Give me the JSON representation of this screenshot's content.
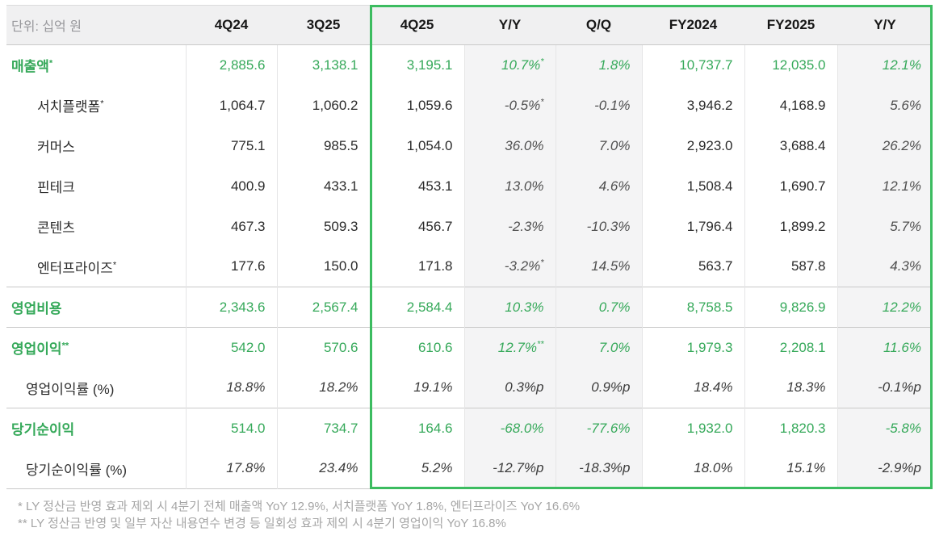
{
  "chart_data": {
    "type": "table",
    "unit_label": "단위: 십억 원",
    "columns": [
      {
        "label": "4Q24",
        "boxed": false,
        "shaded": false,
        "italic": false
      },
      {
        "label": "3Q25",
        "boxed": false,
        "shaded": false,
        "italic": false
      },
      {
        "label": "4Q25",
        "boxed": true,
        "shaded": false,
        "italic": false
      },
      {
        "label": "Y/Y",
        "boxed": true,
        "shaded": true,
        "italic": true
      },
      {
        "label": "Q/Q",
        "boxed": true,
        "shaded": true,
        "italic": true
      },
      {
        "label": "FY2024",
        "boxed": true,
        "shaded": false,
        "italic": false
      },
      {
        "label": "FY2025",
        "boxed": true,
        "shaded": false,
        "italic": false
      },
      {
        "label": "Y/Y",
        "boxed": true,
        "shaded": true,
        "italic": true
      }
    ],
    "rows": [
      {
        "label": "매출액*",
        "type": "total",
        "divider_above": false,
        "values": [
          "2,885.6",
          "3,138.1",
          "3,195.1",
          "10.7%*",
          "1.8%",
          "10,737.7",
          "12,035.0",
          "12.1%"
        ]
      },
      {
        "label": "서치플랫폼*",
        "type": "segment",
        "divider_above": false,
        "values": [
          "1,064.7",
          "1,060.2",
          "1,059.6",
          "-0.5%*",
          "-0.1%",
          "3,946.2",
          "4,168.9",
          "5.6%"
        ]
      },
      {
        "label": "커머스",
        "type": "segment",
        "divider_above": false,
        "values": [
          "775.1",
          "985.5",
          "1,054.0",
          "36.0%",
          "7.0%",
          "2,923.0",
          "3,688.4",
          "26.2%"
        ]
      },
      {
        "label": "핀테크",
        "type": "segment",
        "divider_above": false,
        "values": [
          "400.9",
          "433.1",
          "453.1",
          "13.0%",
          "4.6%",
          "1,508.4",
          "1,690.7",
          "12.1%"
        ]
      },
      {
        "label": "콘텐츠",
        "type": "segment",
        "divider_above": false,
        "values": [
          "467.3",
          "509.3",
          "456.7",
          "-2.3%",
          "-10.3%",
          "1,796.4",
          "1,899.2",
          "5.7%"
        ]
      },
      {
        "label": "엔터프라이즈*",
        "type": "segment",
        "divider_above": false,
        "values": [
          "177.6",
          "150.0",
          "171.8",
          "-3.2%*",
          "14.5%",
          "563.7",
          "587.8",
          "4.3%"
        ]
      },
      {
        "label": "영업비용",
        "type": "total",
        "divider_above": true,
        "values": [
          "2,343.6",
          "2,567.4",
          "2,584.4",
          "10.3%",
          "0.7%",
          "8,758.5",
          "9,826.9",
          "12.2%"
        ]
      },
      {
        "label": "영업이익**",
        "type": "total",
        "divider_above": true,
        "values": [
          "542.0",
          "570.6",
          "610.6",
          "12.7%**",
          "7.0%",
          "1,979.3",
          "2,208.1",
          "11.6%"
        ]
      },
      {
        "label": "영업이익률 (%)",
        "type": "ratio",
        "divider_above": false,
        "values": [
          "18.8%",
          "18.2%",
          "19.1%",
          "0.3%p",
          "0.9%p",
          "18.4%",
          "18.3%",
          "-0.1%p"
        ]
      },
      {
        "label": "당기순이익",
        "type": "total",
        "divider_above": true,
        "values": [
          "514.0",
          "734.7",
          "164.6",
          "-68.0%",
          "-77.6%",
          "1,932.0",
          "1,820.3",
          "-5.8%"
        ]
      },
      {
        "label": "당기순이익률 (%)",
        "type": "ratio",
        "divider_above": false,
        "values": [
          "17.8%",
          "23.4%",
          "5.2%",
          "-12.7%p",
          "-18.3%p",
          "18.0%",
          "15.1%",
          "-2.9%p"
        ]
      }
    ]
  },
  "footnotes": [
    "* LY 정산금 반영 효과 제외 시 4분기 전체 매출액 YoY 12.9%, 서치플랫폼 YoY 1.8%, 엔터프라이즈 YoY 16.6%",
    "** LY 정산금 반영 및 일부 자산 내용연수 변경 등 일회성 효과 제외 시 4분기 영업이익 YoY 16.8%"
  ],
  "colors": {
    "accent_green": "#36A95A",
    "highlight_box_green": "#3CBC60",
    "header_bg": "#F0F0F1",
    "shaded_column_bg": "#F4F4F5"
  }
}
